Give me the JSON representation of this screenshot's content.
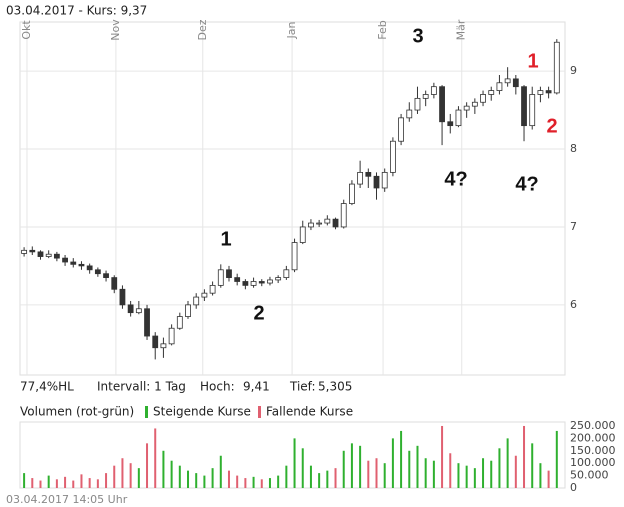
{
  "header": "03.04.2017  -  Kurs: 9,37",
  "stats": [
    "77,4%HL",
    "Intervall: 1 Tag",
    "Hoch:",
    "9,41",
    "Tief:",
    "5,305"
  ],
  "footer": "03.04.2017 14:05 Uhr",
  "chart_data": [
    {
      "type": "candlestick",
      "candles": [
        [
          6.66,
          6.74,
          6.62,
          6.7
        ],
        [
          6.7,
          6.75,
          6.64,
          6.68
        ],
        [
          6.68,
          6.7,
          6.58,
          6.62
        ],
        [
          6.62,
          6.7,
          6.6,
          6.65
        ],
        [
          6.65,
          6.68,
          6.56,
          6.6
        ],
        [
          6.6,
          6.64,
          6.5,
          6.55
        ],
        [
          6.55,
          6.6,
          6.48,
          6.52
        ],
        [
          6.52,
          6.56,
          6.45,
          6.5
        ],
        [
          6.5,
          6.53,
          6.4,
          6.45
        ],
        [
          6.45,
          6.48,
          6.36,
          6.4
        ],
        [
          6.4,
          6.44,
          6.3,
          6.35
        ],
        [
          6.35,
          6.38,
          6.15,
          6.2
        ],
        [
          6.2,
          6.25,
          5.95,
          6.0
        ],
        [
          6.0,
          6.05,
          5.85,
          5.9
        ],
        [
          5.9,
          6.05,
          5.88,
          5.95
        ],
        [
          5.95,
          6.0,
          5.55,
          5.6
        ],
        [
          5.6,
          5.65,
          5.3,
          5.45
        ],
        [
          5.45,
          5.58,
          5.32,
          5.5
        ],
        [
          5.5,
          5.75,
          5.48,
          5.7
        ],
        [
          5.7,
          5.9,
          5.68,
          5.85
        ],
        [
          5.85,
          6.05,
          5.82,
          6.0
        ],
        [
          6.0,
          6.15,
          5.95,
          6.1
        ],
        [
          6.1,
          6.2,
          6.05,
          6.15
        ],
        [
          6.15,
          6.3,
          6.12,
          6.25
        ],
        [
          6.25,
          6.52,
          6.22,
          6.45
        ],
        [
          6.45,
          6.5,
          6.3,
          6.35
        ],
        [
          6.35,
          6.4,
          6.25,
          6.3
        ],
        [
          6.3,
          6.33,
          6.2,
          6.25
        ],
        [
          6.25,
          6.35,
          6.22,
          6.3
        ],
        [
          6.3,
          6.33,
          6.24,
          6.28
        ],
        [
          6.28,
          6.36,
          6.25,
          6.32
        ],
        [
          6.32,
          6.38,
          6.28,
          6.35
        ],
        [
          6.35,
          6.5,
          6.32,
          6.45
        ],
        [
          6.45,
          6.85,
          6.42,
          6.8
        ],
        [
          6.8,
          7.08,
          6.78,
          7.0
        ],
        [
          7.0,
          7.1,
          6.96,
          7.05
        ],
        [
          7.05,
          7.09,
          7.0,
          7.05
        ],
        [
          7.05,
          7.15,
          7.02,
          7.1
        ],
        [
          7.1,
          7.12,
          6.97,
          7.0
        ],
        [
          7.0,
          7.35,
          6.98,
          7.3
        ],
        [
          7.3,
          7.6,
          7.28,
          7.55
        ],
        [
          7.55,
          7.85,
          7.5,
          7.7
        ],
        [
          7.7,
          7.75,
          7.5,
          7.65
        ],
        [
          7.65,
          7.7,
          7.35,
          7.5
        ],
        [
          7.5,
          7.75,
          7.45,
          7.7
        ],
        [
          7.7,
          8.15,
          7.65,
          8.1
        ],
        [
          8.1,
          8.45,
          8.05,
          8.4
        ],
        [
          8.4,
          8.6,
          8.35,
          8.5
        ],
        [
          8.5,
          8.8,
          8.45,
          8.65
        ],
        [
          8.65,
          8.75,
          8.55,
          8.7
        ],
        [
          8.7,
          8.85,
          8.65,
          8.8
        ],
        [
          8.8,
          8.82,
          8.05,
          8.35
        ],
        [
          8.35,
          8.45,
          8.2,
          8.3
        ],
        [
          8.3,
          8.55,
          8.28,
          8.5
        ],
        [
          8.5,
          8.6,
          8.4,
          8.55
        ],
        [
          8.55,
          8.65,
          8.45,
          8.6
        ],
        [
          8.6,
          8.75,
          8.55,
          8.7
        ],
        [
          8.7,
          8.8,
          8.62,
          8.75
        ],
        [
          8.75,
          8.95,
          8.7,
          8.85
        ],
        [
          8.85,
          9.05,
          8.8,
          8.9
        ],
        [
          8.9,
          8.95,
          8.7,
          8.8
        ],
        [
          8.8,
          8.82,
          8.1,
          8.3
        ],
        [
          8.3,
          8.8,
          8.25,
          8.7
        ],
        [
          8.7,
          8.8,
          8.6,
          8.75
        ],
        [
          8.75,
          8.8,
          8.65,
          8.72
        ],
        [
          8.72,
          9.41,
          8.7,
          9.37
        ]
      ],
      "xlim": [
        -0.5,
        66
      ],
      "xticks": [
        {
          "value": 0.35,
          "label": "Okt"
        },
        {
          "value": 11.2,
          "label": "Nov"
        },
        {
          "value": 21.8,
          "label": "Dez"
        },
        {
          "value": 32.7,
          "label": "Jan"
        },
        {
          "value": 43.8,
          "label": "Feb"
        },
        {
          "value": 53.4,
          "label": "Mär"
        }
      ],
      "ylim": [
        5.1,
        9.63
      ],
      "yticks": [
        6,
        7,
        8,
        9
      ],
      "grid": true,
      "color": "#333333",
      "annotations": [
        {
          "text": "3",
          "color": "#111111"
        },
        {
          "text": "1",
          "color": "#111111"
        },
        {
          "text": "2",
          "color": "#111111"
        },
        {
          "text": "4?",
          "color": "#111111"
        },
        {
          "text": "4?",
          "color": "#111111"
        },
        {
          "text": "1",
          "color": "#e0202a"
        },
        {
          "text": "2",
          "color": "#e0202a"
        }
      ]
    },
    {
      "type": "bar",
      "title": "Volumen (rot-grün)",
      "xlim": [
        -0.5,
        66
      ],
      "ylim": [
        0,
        266000
      ],
      "yticks": [
        0,
        {
          "value": 50000,
          "label": "50.000"
        },
        {
          "value": 100000,
          "label": "100.000"
        },
        {
          "value": 150000,
          "label": "150.000"
        },
        {
          "value": 200000,
          "label": "200.000"
        },
        {
          "value": 250000,
          "label": "250.000"
        }
      ],
      "series": [
        {
          "name": "Steigende Kurse",
          "color": "#2fb02f",
          "values": [
            60000,
            null,
            null,
            50000,
            null,
            null,
            null,
            null,
            null,
            null,
            null,
            null,
            null,
            null,
            80000,
            null,
            null,
            150000,
            110000,
            90000,
            70000,
            60000,
            50000,
            80000,
            130000,
            null,
            null,
            null,
            45000,
            null,
            40000,
            50000,
            90000,
            200000,
            160000,
            90000,
            60000,
            70000,
            null,
            150000,
            180000,
            170000,
            null,
            null,
            100000,
            200000,
            230000,
            150000,
            170000,
            120000,
            110000,
            null,
            null,
            100000,
            90000,
            80000,
            120000,
            110000,
            160000,
            200000,
            null,
            null,
            180000,
            100000,
            null,
            230000
          ]
        },
        {
          "name": "Fallende Kurse",
          "color": "#e06070",
          "values": [
            null,
            40000,
            30000,
            null,
            35000,
            45000,
            30000,
            55000,
            40000,
            35000,
            60000,
            90000,
            120000,
            100000,
            null,
            180000,
            240000,
            null,
            null,
            null,
            null,
            null,
            null,
            null,
            null,
            70000,
            50000,
            40000,
            null,
            35000,
            null,
            null,
            null,
            null,
            null,
            null,
            null,
            null,
            80000,
            null,
            null,
            null,
            110000,
            120000,
            null,
            null,
            null,
            null,
            null,
            null,
            null,
            250000,
            140000,
            null,
            null,
            null,
            null,
            null,
            null,
            null,
            130000,
            250000,
            null,
            null,
            70000,
            null
          ]
        }
      ]
    }
  ]
}
